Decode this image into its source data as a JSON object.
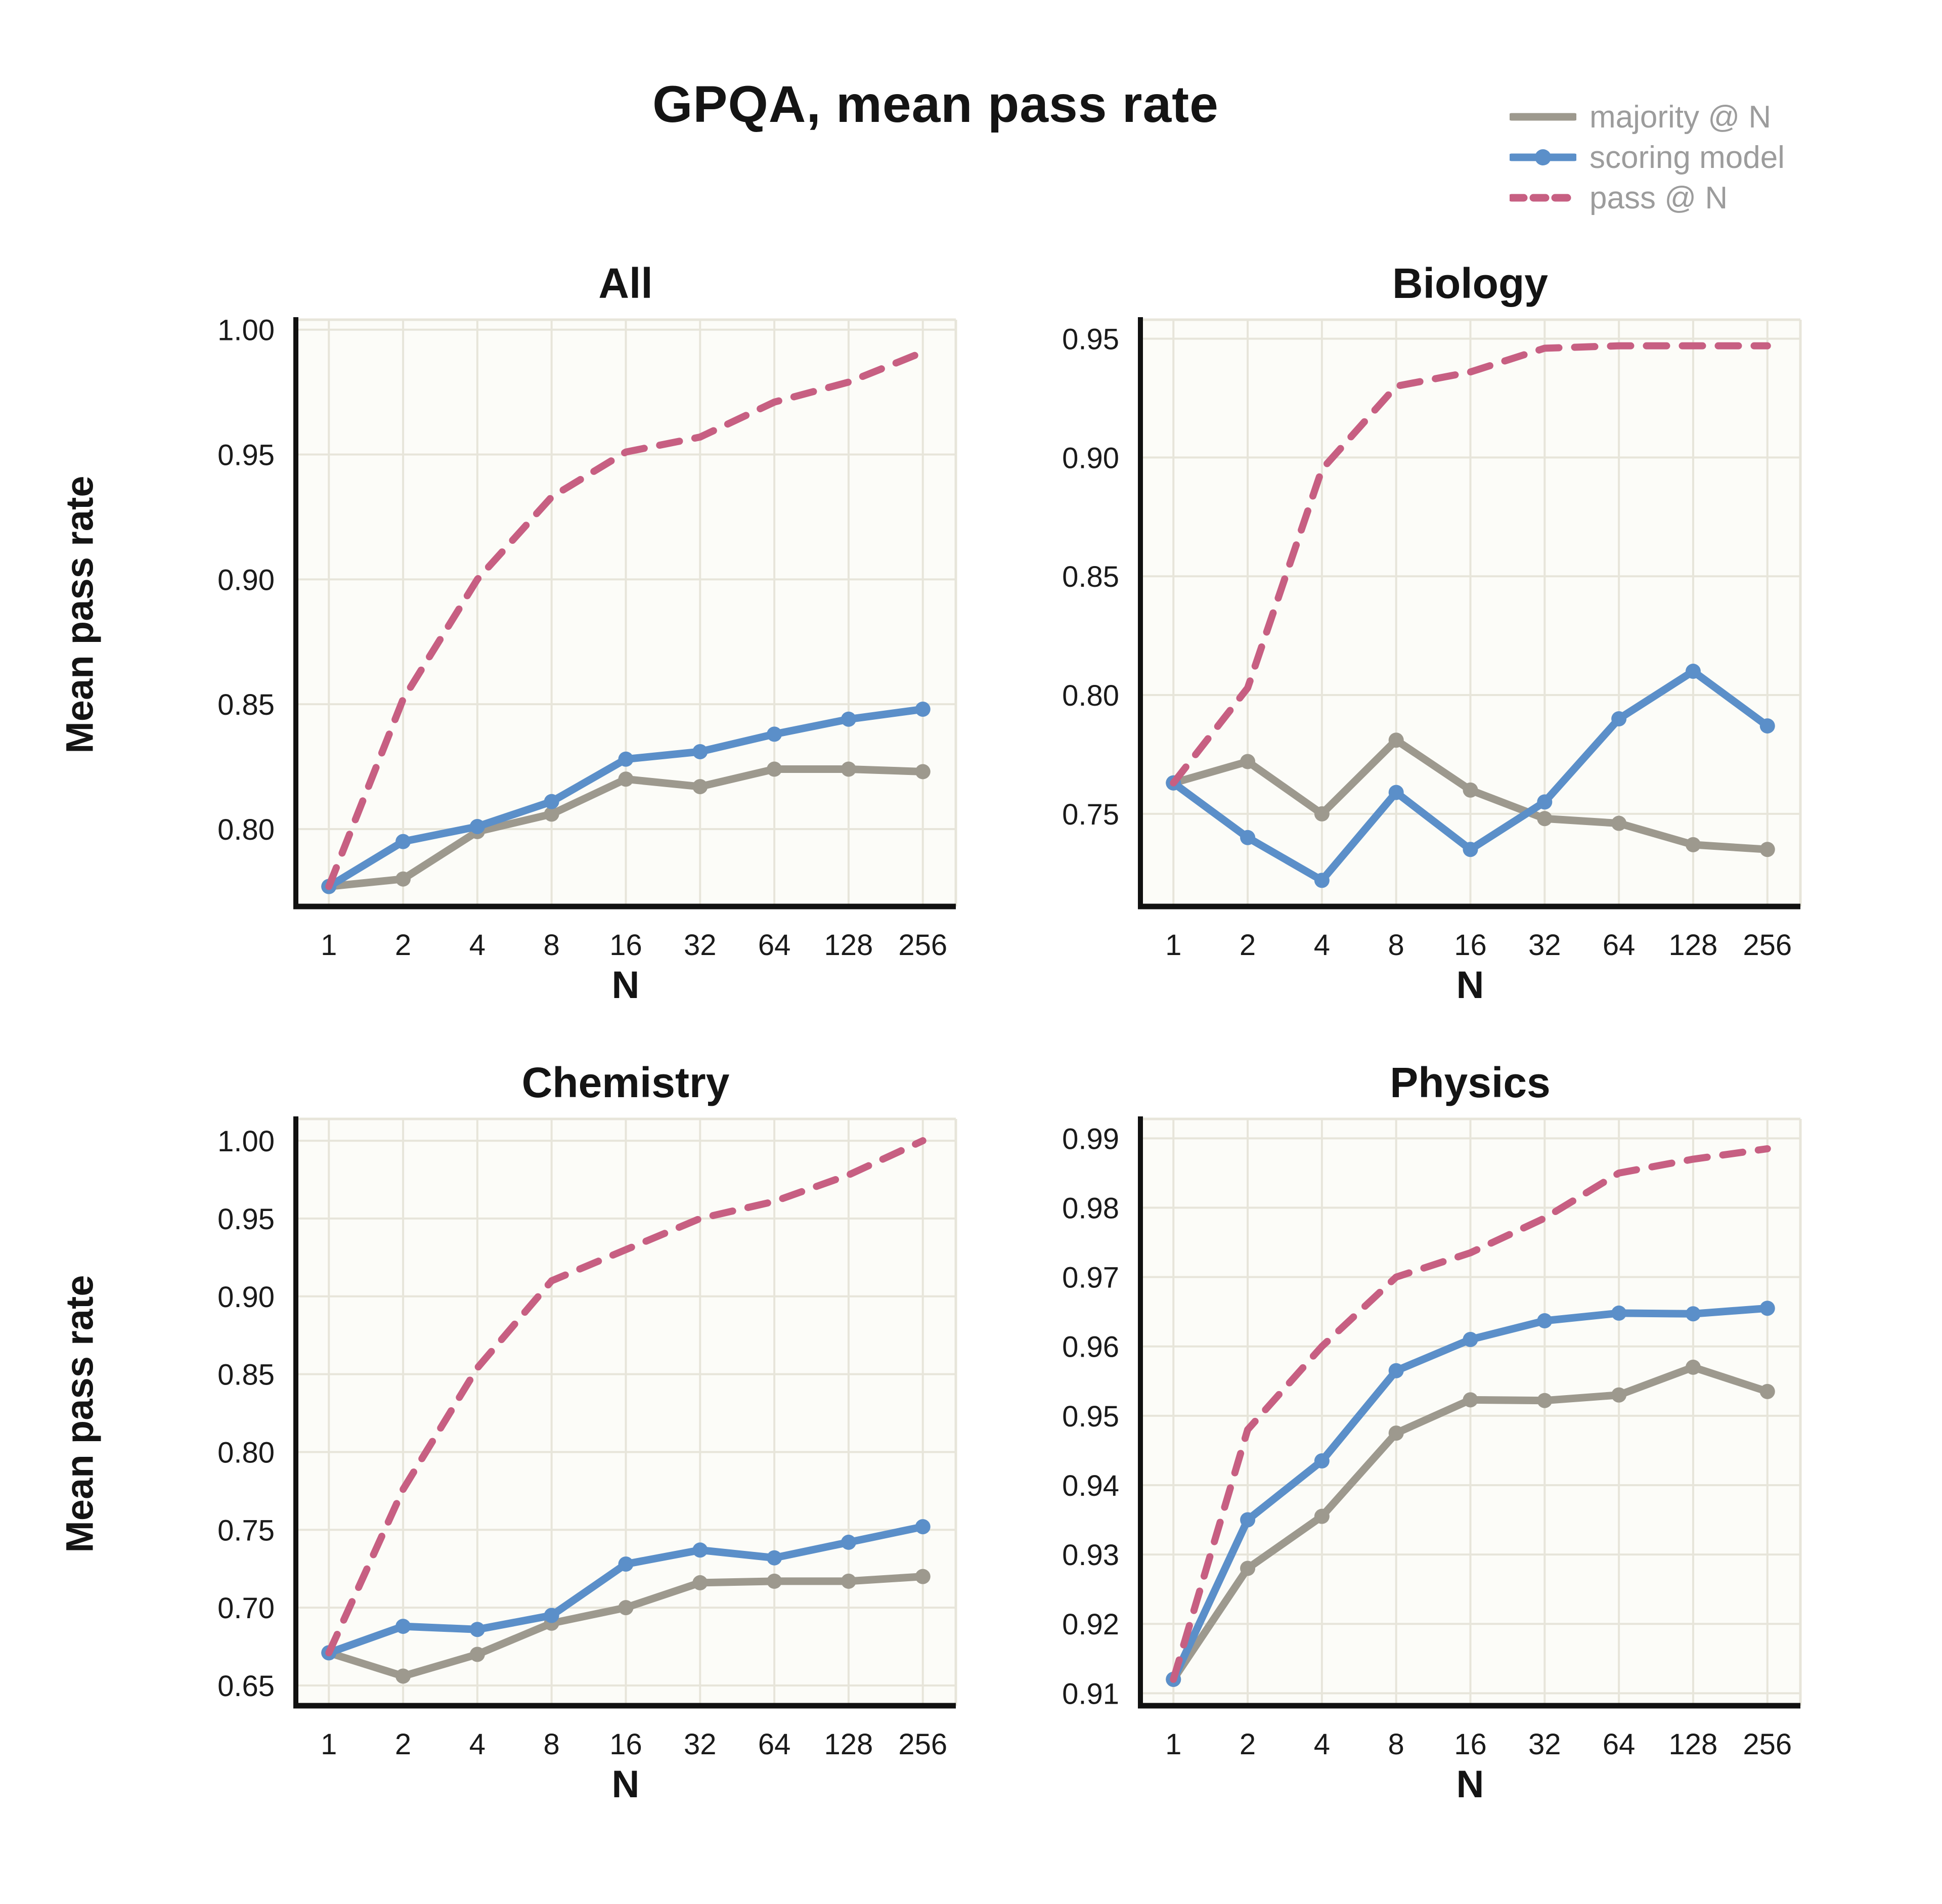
{
  "page": {
    "title": "GPQA, mean pass rate"
  },
  "legend": {
    "position": "top-right",
    "text_color": "#9c9c9c",
    "items": [
      {
        "id": "majority-at-n",
        "label": "majority @ N",
        "color": "#9d998e",
        "style": "solid",
        "dashed": false,
        "marker": true
      },
      {
        "id": "scoring-model",
        "label": "scoring model",
        "color": "#5b8fc9",
        "style": "solid-with-dot",
        "dashed": false,
        "marker": true
      },
      {
        "id": "pass-at-n",
        "label": "pass @ N",
        "color": "#c75f82",
        "style": "dashed",
        "dashed": true,
        "marker": false
      }
    ]
  },
  "style": {
    "plot_bg": "#fcfcf8",
    "grid": "#e7e5da",
    "spine": "#111111",
    "tick_color": "#1a1a1a"
  },
  "chart_data": [
    {
      "type": "line",
      "title": "All",
      "xlabel": "N",
      "ylabel": "Mean pass rate",
      "x_scale": "log2-categorical",
      "grid": true,
      "categories": [
        "1",
        "2",
        "4",
        "8",
        "16",
        "32",
        "64",
        "128",
        "256"
      ],
      "yticks": [
        0.8,
        0.85,
        0.9,
        0.95,
        1.0
      ],
      "ylim": [
        0.769,
        1.004
      ],
      "series": [
        {
          "name": "majority @ N",
          "values": [
            0.777,
            0.78,
            0.799,
            0.806,
            0.82,
            0.817,
            0.824,
            0.824,
            0.823
          ]
        },
        {
          "name": "scoring model",
          "values": [
            0.777,
            0.795,
            0.801,
            0.811,
            0.828,
            0.831,
            0.838,
            0.844,
            0.848
          ]
        },
        {
          "name": "pass @ N",
          "values": [
            0.777,
            0.852,
            0.9,
            0.933,
            0.951,
            0.957,
            0.971,
            0.979,
            0.991
          ]
        }
      ]
    },
    {
      "type": "line",
      "title": "Biology",
      "xlabel": "N",
      "x_scale": "log2-categorical",
      "grid": true,
      "categories": [
        "1",
        "2",
        "4",
        "8",
        "16",
        "32",
        "64",
        "128",
        "256"
      ],
      "yticks": [
        0.75,
        0.8,
        0.85,
        0.9,
        0.95
      ],
      "ylim": [
        0.711,
        0.958
      ],
      "series": [
        {
          "name": "majority @ N",
          "values": [
            0.763,
            0.772,
            0.75,
            0.781,
            0.76,
            0.748,
            0.746,
            0.737,
            0.735
          ]
        },
        {
          "name": "scoring model",
          "values": [
            0.763,
            0.74,
            0.722,
            0.759,
            0.735,
            0.755,
            0.79,
            0.81,
            0.787
          ]
        },
        {
          "name": "pass @ N",
          "values": [
            0.763,
            0.803,
            0.895,
            0.93,
            0.936,
            0.946,
            0.947,
            0.947,
            0.947
          ]
        }
      ]
    },
    {
      "type": "line",
      "title": "Chemistry",
      "xlabel": "N",
      "ylabel": "Mean pass rate",
      "x_scale": "log2-categorical",
      "grid": true,
      "categories": [
        "1",
        "2",
        "4",
        "8",
        "16",
        "32",
        "64",
        "128",
        "256"
      ],
      "yticks": [
        0.65,
        0.7,
        0.75,
        0.8,
        0.85,
        0.9,
        0.95,
        1.0
      ],
      "ylim": [
        0.637,
        1.014
      ],
      "series": [
        {
          "name": "majority @ N",
          "values": [
            0.671,
            0.656,
            0.67,
            0.69,
            0.7,
            0.716,
            0.717,
            0.717,
            0.72
          ]
        },
        {
          "name": "scoring model",
          "values": [
            0.671,
            0.688,
            0.686,
            0.695,
            0.728,
            0.737,
            0.732,
            0.742,
            0.752
          ]
        },
        {
          "name": "pass @ N",
          "values": [
            0.671,
            0.776,
            0.854,
            0.91,
            0.93,
            0.95,
            0.961,
            0.978,
            1.0
          ]
        }
      ]
    },
    {
      "type": "line",
      "title": "Physics",
      "xlabel": "N",
      "x_scale": "log2-categorical",
      "grid": true,
      "categories": [
        "1",
        "2",
        "4",
        "8",
        "16",
        "32",
        "64",
        "128",
        "256"
      ],
      "yticks": [
        0.91,
        0.92,
        0.93,
        0.94,
        0.95,
        0.96,
        0.97,
        0.98,
        0.99
      ],
      "ylim": [
        0.9082,
        0.9928
      ],
      "series": [
        {
          "name": "majority @ N",
          "values": [
            0.912,
            0.928,
            0.9355,
            0.9475,
            0.9523,
            0.9522,
            0.953,
            0.957,
            0.9535
          ]
        },
        {
          "name": "scoring model",
          "values": [
            0.912,
            0.935,
            0.9435,
            0.9565,
            0.961,
            0.9637,
            0.9648,
            0.9647,
            0.9655
          ]
        },
        {
          "name": "pass @ N",
          "values": [
            0.912,
            0.948,
            0.96,
            0.97,
            0.9735,
            0.9785,
            0.985,
            0.987,
            0.9885
          ]
        }
      ]
    }
  ]
}
